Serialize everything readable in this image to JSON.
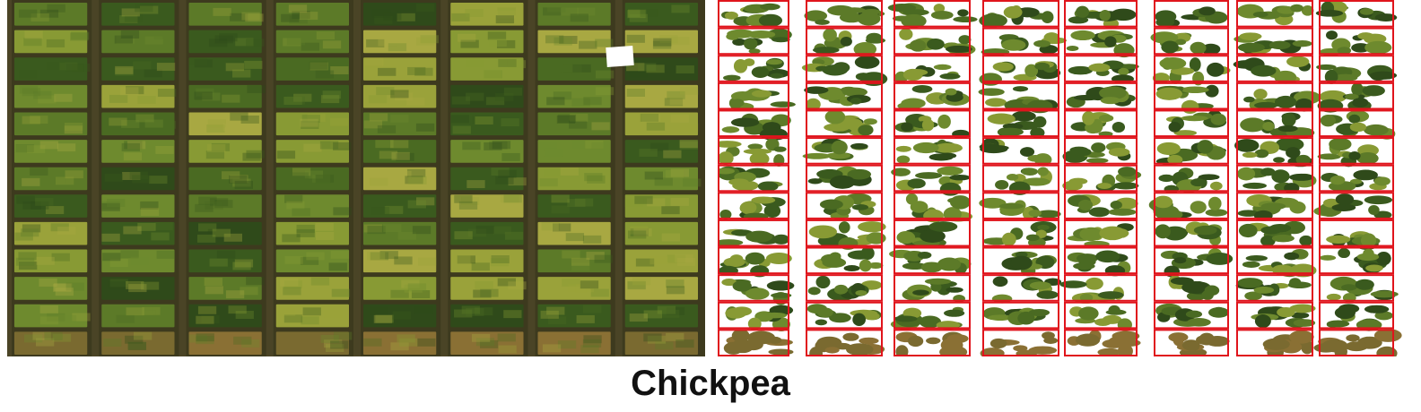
{
  "caption": "Chickpea",
  "field_colors": {
    "soil": "#3d3a1e",
    "path": "#4a4426",
    "plot_palette": [
      "#2f4a1a",
      "#3a5a1e",
      "#4a6a22",
      "#5c7a28",
      "#6e8a2e",
      "#889a34",
      "#9aa23a",
      "#a8a842",
      "#7a6a30",
      "#8a7034"
    ],
    "box_color": "#e0141c",
    "white_patch": "#ffffff"
  },
  "field_layout": {
    "columns": 8,
    "rows": 13
  }
}
